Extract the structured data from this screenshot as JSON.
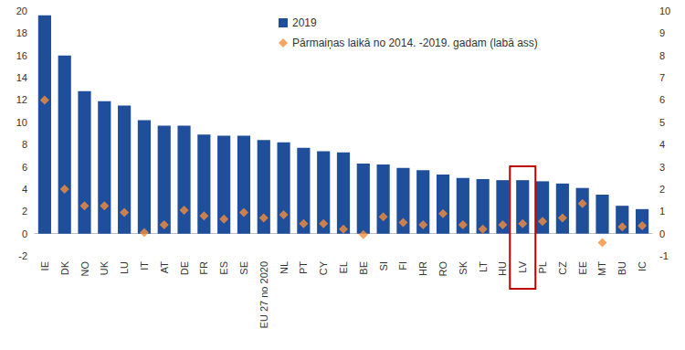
{
  "chart_data": {
    "type": "bar",
    "categories": [
      "IE",
      "DK",
      "NO",
      "UK",
      "LU",
      "IT",
      "AT",
      "DE",
      "FR",
      "ES",
      "SE",
      "EU 27 no 2020",
      "NL",
      "PT",
      "CY",
      "EL",
      "BE",
      "SI",
      "FI",
      "HR",
      "RO",
      "SK",
      "LT",
      "HU",
      "LV",
      "PL",
      "CZ",
      "EE",
      "MT",
      "BU",
      "IC"
    ],
    "series": [
      {
        "name": "2019",
        "type": "bar",
        "color": "#1f4e9b",
        "marker": "square",
        "values": [
          19.6,
          16.0,
          12.8,
          11.9,
          11.5,
          10.2,
          9.7,
          9.7,
          8.9,
          8.8,
          8.8,
          8.4,
          8.2,
          7.7,
          7.4,
          7.3,
          6.3,
          6.2,
          5.9,
          5.7,
          5.3,
          5.0,
          4.9,
          4.8,
          4.8,
          4.7,
          4.5,
          4.1,
          3.5,
          2.5,
          2.2
        ]
      },
      {
        "name": "Pārmaiņas laikā no 2014. -2019. gadam (labā ass)",
        "type": "scatter",
        "axis": "y2",
        "color": "#f58f3c",
        "marker": "diamond",
        "values": [
          6.0,
          2.0,
          1.25,
          1.25,
          0.95,
          0.05,
          0.4,
          1.05,
          0.8,
          0.65,
          0.95,
          0.7,
          0.85,
          0.45,
          0.45,
          0.2,
          -0.05,
          0.75,
          0.5,
          0.4,
          0.9,
          0.4,
          0.2,
          0.4,
          0.45,
          0.55,
          0.7,
          1.35,
          -0.4,
          0.3,
          0.35
        ]
      }
    ],
    "ylim": [
      -2,
      20
    ],
    "yticks": [
      -2,
      0,
      2,
      4,
      6,
      8,
      10,
      12,
      14,
      16,
      18,
      20
    ],
    "y2lim": [
      -1,
      10
    ],
    "y2ticks": [
      -1,
      0,
      1,
      2,
      3,
      4,
      5,
      6,
      7,
      8,
      9,
      10
    ],
    "grid": false,
    "legend": "upper center"
  }
}
